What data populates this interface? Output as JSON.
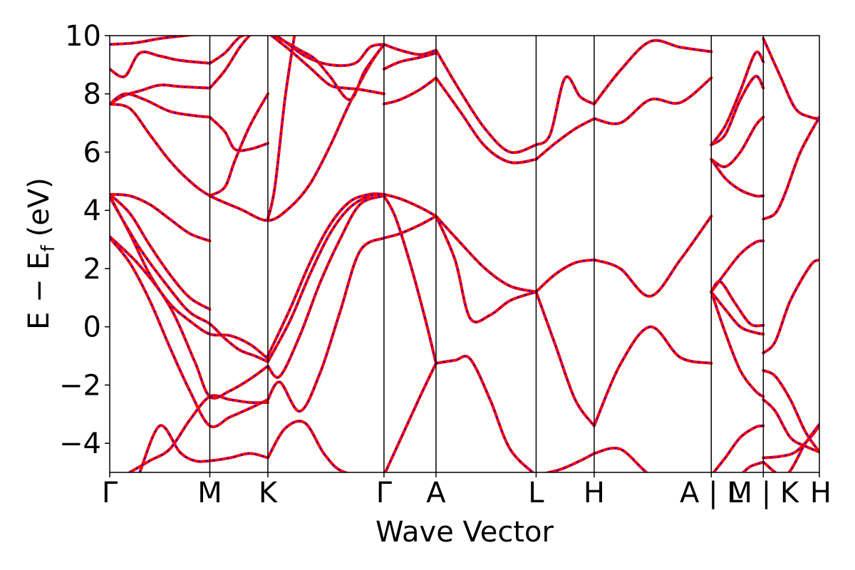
{
  "chart_data": {
    "type": "line",
    "title": "",
    "xlabel": "Wave Vector",
    "ylabel_parts": {
      "main": "E − E",
      "sub": "f",
      "unit": "(eV)"
    },
    "ylim": [
      -5,
      10
    ],
    "yticks": [
      -4,
      -2,
      0,
      2,
      4,
      6,
      8,
      10
    ],
    "ytick_labels": [
      "−4",
      "−2",
      "0",
      "2",
      "4",
      "6",
      "8",
      "10"
    ],
    "xlim": [
      0,
      7.09
    ],
    "kpoints": [
      {
        "label": "Γ",
        "x": 0.0
      },
      {
        "label": "M",
        "x": 1.0
      },
      {
        "label": "K",
        "x": 1.58
      },
      {
        "label": "Γ",
        "x": 2.74
      },
      {
        "label": "A",
        "x": 3.26
      },
      {
        "label": "L",
        "x": 4.26
      },
      {
        "label": "H",
        "x": 4.84
      },
      {
        "label": "A | L",
        "x": 6.01
      },
      {
        "label": "M | K",
        "x": 6.53
      },
      {
        "label": "H",
        "x": 7.09
      }
    ],
    "grid": false,
    "legend": "none",
    "colors": {
      "primary": "#ff0000",
      "overlay": "#0000ff",
      "kline": "#000000"
    },
    "series": [
      {
        "x": [
          0,
          0.25,
          0.5,
          0.75,
          1.0
        ],
        "y": [
          9.7,
          9.75,
          9.9,
          10.0,
          10.1
        ]
      },
      {
        "x": [
          0,
          0.15,
          0.3,
          0.5,
          0.7,
          1.0
        ],
        "y": [
          8.85,
          8.6,
          9.4,
          9.3,
          9.15,
          9.05
        ]
      },
      {
        "x": [
          0,
          0.15,
          0.3,
          0.5,
          0.7,
          1.0
        ],
        "y": [
          7.65,
          7.95,
          8.1,
          8.3,
          8.25,
          8.2
        ]
      },
      {
        "x": [
          0,
          0.15,
          0.35,
          0.6,
          0.85,
          1.0
        ],
        "y": [
          7.65,
          8.0,
          7.8,
          7.4,
          7.25,
          7.2
        ]
      },
      {
        "x": [
          1.0,
          1.15,
          1.3,
          1.45
        ],
        "y": [
          9.05,
          9.4,
          9.95,
          10.1
        ]
      },
      {
        "x": [
          1.0,
          1.15,
          1.3,
          1.42
        ],
        "y": [
          8.2,
          8.8,
          9.6,
          10.1
        ]
      },
      {
        "x": [
          1.0,
          1.15,
          1.25,
          1.4,
          1.58
        ],
        "y": [
          7.2,
          6.7,
          6.1,
          6.1,
          6.3
        ]
      },
      {
        "x": [
          1.0,
          1.15,
          1.25,
          1.4,
          1.58
        ],
        "y": [
          4.5,
          4.8,
          5.7,
          6.9,
          8.0
        ]
      },
      {
        "x": [
          1.58,
          1.65,
          1.75,
          1.85
        ],
        "y": [
          3.7,
          4.8,
          7.8,
          10.1
        ]
      },
      {
        "x": [
          0,
          0.2,
          0.4,
          0.6,
          0.8,
          1.0,
          1.3,
          1.58,
          1.8,
          2.0,
          2.2,
          2.4,
          2.6,
          2.74
        ],
        "y": [
          7.65,
          7.5,
          6.6,
          5.7,
          5.0,
          4.5,
          4.05,
          3.65,
          4.1,
          4.9,
          6.2,
          7.7,
          9.0,
          9.7
        ]
      },
      {
        "x": [
          1.58,
          1.75,
          1.9,
          2.05,
          2.2,
          2.4,
          2.55,
          2.74
        ],
        "y": [
          10.1,
          9.8,
          9.5,
          9.2,
          8.6,
          7.8,
          8.8,
          9.7
        ]
      },
      {
        "x": [
          1.58,
          1.8,
          2.0,
          2.2,
          2.35,
          2.5,
          2.74
        ],
        "y": [
          10.1,
          9.5,
          8.9,
          8.3,
          8.2,
          8.15,
          8.0
        ]
      },
      {
        "x": [
          1.58,
          1.75,
          1.95,
          2.2,
          2.45,
          2.6,
          2.74
        ],
        "y": [
          10.2,
          9.8,
          9.3,
          9.0,
          9.05,
          9.6,
          9.7
        ]
      },
      {
        "x": [
          0,
          0.2,
          0.4,
          0.6,
          0.8,
          1.0
        ],
        "y": [
          4.55,
          4.5,
          4.2,
          3.7,
          3.2,
          2.95
        ]
      },
      {
        "x": [
          0,
          0.2,
          0.4,
          0.6,
          0.8,
          1.0
        ],
        "y": [
          4.55,
          3.9,
          2.8,
          1.8,
          1.0,
          0.6
        ]
      },
      {
        "x": [
          0,
          0.2,
          0.4,
          0.6,
          0.8,
          1.0,
          1.2,
          1.4,
          1.58
        ],
        "y": [
          4.5,
          3.2,
          1.8,
          0.8,
          0.2,
          -0.25,
          -0.3,
          -0.6,
          -1.1
        ]
      },
      {
        "x": [
          0,
          0.3,
          0.6,
          0.8,
          1.0,
          1.15,
          1.3,
          1.45,
          1.58
        ],
        "y": [
          4.45,
          2.7,
          1.3,
          0.5,
          0.1,
          -0.4,
          -0.8,
          -1.0,
          -1.2
        ]
      },
      {
        "x": [
          0,
          0.3,
          0.6,
          0.85,
          1.0,
          1.2,
          1.4,
          1.58
        ],
        "y": [
          3.1,
          2.1,
          0.7,
          -1.2,
          -2.4,
          -2.2,
          -1.8,
          -1.35
        ]
      },
      {
        "x": [
          0,
          0.2,
          0.4,
          0.6,
          0.8,
          1.0,
          1.2,
          1.4,
          1.58
        ],
        "y": [
          3.05,
          2.2,
          0.9,
          -0.7,
          -2.2,
          -3.4,
          -3.1,
          -2.8,
          -2.5
        ]
      },
      {
        "x": [
          0.2,
          0.4,
          0.6,
          0.8,
          1.0,
          1.2,
          1.4,
          1.58
        ],
        "y": [
          -5.0,
          -4.6,
          -4.2,
          -3.2,
          -2.4,
          -2.5,
          -2.6,
          -2.6
        ]
      },
      {
        "x": [
          0.3,
          0.5,
          0.7,
          0.85,
          1.0,
          1.2,
          1.4,
          1.58
        ],
        "y": [
          -5.0,
          -3.4,
          -4.3,
          -4.6,
          -4.6,
          -4.5,
          -4.35,
          -4.5
        ]
      },
      {
        "x": [
          1.58,
          1.8,
          2.0,
          2.2,
          2.4,
          2.6,
          2.74
        ],
        "y": [
          -1.0,
          0.6,
          2.2,
          3.5,
          4.3,
          4.55,
          4.55
        ]
      },
      {
        "x": [
          1.58,
          1.8,
          2.0,
          2.2,
          2.4,
          2.6,
          2.74
        ],
        "y": [
          -1.2,
          0.2,
          1.8,
          3.2,
          4.1,
          4.5,
          4.55
        ]
      },
      {
        "x": [
          1.58,
          1.7,
          1.9,
          2.1,
          2.3,
          2.5,
          2.74
        ],
        "y": [
          -1.35,
          -1.7,
          -0.3,
          1.5,
          3.0,
          4.2,
          4.5
        ]
      },
      {
        "x": [
          1.58,
          1.7,
          1.9,
          2.1,
          2.3,
          2.5,
          2.74
        ],
        "y": [
          -2.5,
          -1.9,
          -2.9,
          -1.6,
          0.5,
          2.6,
          3.05
        ]
      },
      {
        "x": [
          1.58,
          1.75,
          1.95,
          2.15,
          2.35,
          2.74
        ],
        "y": [
          -4.5,
          -3.5,
          -3.3,
          -4.4,
          -5.0,
          -5.1
        ]
      },
      {
        "x": [
          2.74,
          2.9,
          3.1,
          3.26
        ],
        "y": [
          9.7,
          9.5,
          9.35,
          9.5
        ]
      },
      {
        "x": [
          2.74,
          2.9,
          3.1,
          3.26
        ],
        "y": [
          8.85,
          9.1,
          9.25,
          9.4
        ]
      },
      {
        "x": [
          2.74,
          2.9,
          3.1,
          3.26
        ],
        "y": [
          7.65,
          7.8,
          8.15,
          8.55
        ]
      },
      {
        "x": [
          2.74,
          2.9,
          3.1,
          3.26
        ],
        "y": [
          4.55,
          4.4,
          4.1,
          3.8
        ]
      },
      {
        "x": [
          2.74,
          2.9,
          3.1,
          3.26
        ],
        "y": [
          3.05,
          3.2,
          3.5,
          3.8
        ]
      },
      {
        "x": [
          2.74,
          2.85,
          3.0,
          3.15,
          3.26
        ],
        "y": [
          4.5,
          3.8,
          2.2,
          0.3,
          -1.25
        ]
      },
      {
        "x": [
          2.74,
          2.9,
          3.1,
          3.26
        ],
        "y": [
          -5.1,
          -3.9,
          -2.4,
          -1.25
        ]
      },
      {
        "x": [
          3.26,
          3.5,
          3.75,
          4.0,
          4.26
        ],
        "y": [
          9.5,
          8.1,
          6.8,
          6.0,
          6.25
        ]
      },
      {
        "x": [
          3.26,
          3.5,
          3.75,
          4.0,
          4.26
        ],
        "y": [
          8.55,
          7.4,
          6.2,
          5.65,
          5.75
        ]
      },
      {
        "x": [
          3.26,
          3.5,
          3.75,
          4.0,
          4.26
        ],
        "y": [
          3.8,
          2.9,
          2.0,
          1.4,
          1.2
        ]
      },
      {
        "x": [
          3.26,
          3.45,
          3.6,
          3.8,
          4.0,
          4.26
        ],
        "y": [
          3.8,
          2.3,
          0.3,
          0.4,
          0.9,
          1.2
        ]
      },
      {
        "x": [
          3.26,
          3.45,
          3.6,
          3.8,
          4.0,
          4.26
        ],
        "y": [
          -1.25,
          -1.15,
          -1.1,
          -2.5,
          -4.2,
          -5.1
        ]
      },
      {
        "x": [
          4.26,
          4.4,
          4.55,
          4.7,
          4.84
        ],
        "y": [
          6.25,
          6.6,
          8.55,
          7.9,
          7.65
        ]
      },
      {
        "x": [
          4.26,
          4.45,
          4.65,
          4.84
        ],
        "y": [
          5.75,
          6.3,
          6.8,
          7.15
        ]
      },
      {
        "x": [
          4.26,
          4.45,
          4.65,
          4.84
        ],
        "y": [
          1.2,
          1.8,
          2.2,
          2.3
        ]
      },
      {
        "x": [
          4.26,
          4.45,
          4.65,
          4.84
        ],
        "y": [
          1.2,
          -0.6,
          -2.5,
          -3.4
        ]
      },
      {
        "x": [
          4.26,
          4.5,
          4.7,
          4.84
        ],
        "y": [
          -5.1,
          -4.9,
          -4.6,
          -4.35
        ]
      },
      {
        "x": [
          4.84,
          5.1,
          5.4,
          5.7,
          6.01
        ],
        "y": [
          7.65,
          8.8,
          9.8,
          9.6,
          9.45
        ]
      },
      {
        "x": [
          4.84,
          5.1,
          5.4,
          5.7,
          6.01
        ],
        "y": [
          7.15,
          7.0,
          7.8,
          7.7,
          8.55
        ]
      },
      {
        "x": [
          4.84,
          5.1,
          5.4,
          5.7,
          6.01
        ],
        "y": [
          2.3,
          2.0,
          1.05,
          2.3,
          3.8
        ]
      },
      {
        "x": [
          4.84,
          5.1,
          5.4,
          5.7,
          6.01
        ],
        "y": [
          -3.4,
          -1.3,
          0.0,
          -1.05,
          -1.25
        ]
      },
      {
        "x": [
          4.84,
          5.1,
          5.4,
          5.7,
          6.01
        ],
        "y": [
          -4.35,
          -4.2,
          -5.1,
          -5.5,
          -5.6
        ]
      },
      {
        "x": [
          6.01,
          6.15,
          6.3,
          6.45,
          6.53
        ],
        "y": [
          6.25,
          6.9,
          8.1,
          9.4,
          9.1
        ]
      },
      {
        "x": [
          6.01,
          6.15,
          6.3,
          6.45,
          6.53
        ],
        "y": [
          6.25,
          6.6,
          7.8,
          8.6,
          8.2
        ]
      },
      {
        "x": [
          6.01,
          6.15,
          6.3,
          6.45,
          6.53
        ],
        "y": [
          5.75,
          5.5,
          6.0,
          6.9,
          7.2
        ]
      },
      {
        "x": [
          6.01,
          6.15,
          6.3,
          6.45,
          6.53
        ],
        "y": [
          5.75,
          5.1,
          4.7,
          4.5,
          4.5
        ]
      },
      {
        "x": [
          6.01,
          6.15,
          6.3,
          6.45,
          6.53
        ],
        "y": [
          1.2,
          1.85,
          2.5,
          2.9,
          2.95
        ]
      },
      {
        "x": [
          6.01,
          6.1,
          6.25,
          6.4,
          6.53
        ],
        "y": [
          1.2,
          1.55,
          0.8,
          0.1,
          0.05
        ]
      },
      {
        "x": [
          6.01,
          6.15,
          6.3,
          6.45,
          6.53
        ],
        "y": [
          1.2,
          0.6,
          0.0,
          -0.2,
          -0.25
        ]
      },
      {
        "x": [
          6.01,
          6.15,
          6.3,
          6.45,
          6.53
        ],
        "y": [
          1.2,
          -0.2,
          -1.5,
          -2.2,
          -2.4
        ]
      },
      {
        "x": [
          6.01,
          6.15,
          6.3,
          6.45,
          6.53
        ],
        "y": [
          -5.1,
          -4.5,
          -3.8,
          -3.45,
          -3.4
        ]
      },
      {
        "x": [
          6.3,
          6.4,
          6.53
        ],
        "y": [
          -5.1,
          -4.8,
          -4.65
        ]
      },
      {
        "x": [
          6.53,
          6.7,
          6.85,
          7.0,
          7.09
        ],
        "y": [
          9.9,
          8.6,
          7.5,
          7.2,
          7.15
        ]
      },
      {
        "x": [
          6.53,
          6.65,
          6.75,
          6.9,
          7.09
        ],
        "y": [
          3.7,
          3.9,
          4.6,
          6.0,
          7.2
        ]
      },
      {
        "x": [
          6.53,
          6.65,
          6.8,
          7.0,
          7.09
        ],
        "y": [
          -0.9,
          -0.5,
          0.9,
          2.1,
          2.3
        ]
      },
      {
        "x": [
          6.53,
          6.65,
          6.8,
          6.95,
          7.09
        ],
        "y": [
          -1.5,
          -1.7,
          -2.5,
          -3.6,
          -4.3
        ]
      },
      {
        "x": [
          6.53,
          6.65,
          6.8,
          6.95,
          7.09
        ],
        "y": [
          -2.5,
          -2.9,
          -3.8,
          -4.1,
          -4.3
        ]
      },
      {
        "x": [
          6.53,
          6.7,
          6.85,
          7.0,
          7.09
        ],
        "y": [
          -4.5,
          -4.45,
          -4.3,
          -3.8,
          -3.4
        ]
      },
      {
        "x": [
          6.53,
          6.75,
          6.95,
          7.09
        ],
        "y": [
          -4.65,
          -5.1,
          -4.0,
          -3.35
        ]
      }
    ]
  }
}
